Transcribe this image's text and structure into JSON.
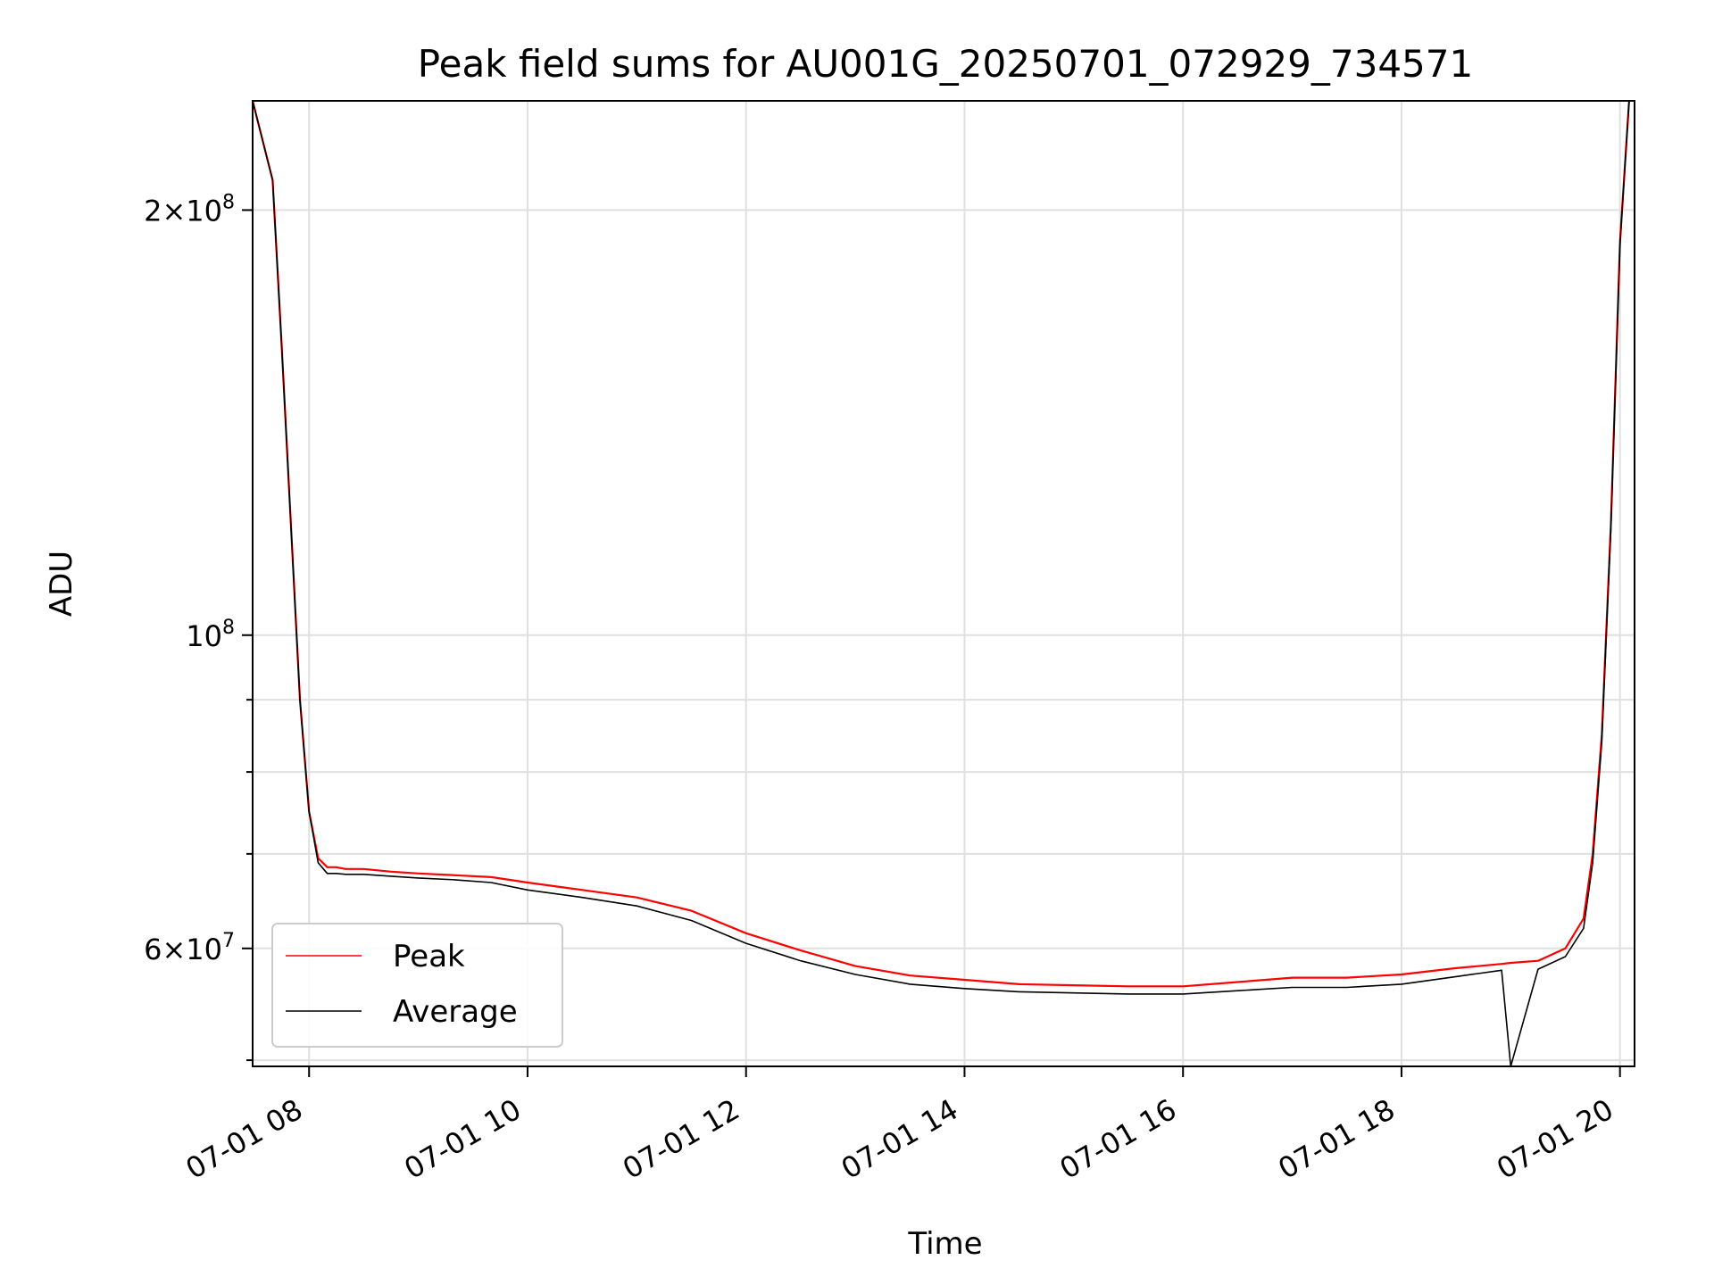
{
  "chart_data": {
    "type": "line",
    "title": "Peak field sums for AU001G_20250701_072929_734571",
    "xlabel": "Time",
    "ylabel": "ADU",
    "xlim": [
      "07-01 07:29",
      "07-01 20:08"
    ],
    "ylim": [
      49500000,
      239000000
    ],
    "yscale": "log",
    "grid": true,
    "legend_position": "lower-left",
    "x_ticks": [
      "07-01 08",
      "07-01 10",
      "07-01 12",
      "07-01 14",
      "07-01 16",
      "07-01 18",
      "07-01 20"
    ],
    "y_ticks": [
      {
        "value": 200000000,
        "mantissa": "2",
        "base": "10",
        "exponent": "8"
      },
      {
        "value": 100000000,
        "mantissa": "",
        "base": "10",
        "exponent": "8"
      },
      {
        "value": 60000000,
        "mantissa": "6",
        "base": "10",
        "exponent": "7"
      }
    ],
    "y_minor_ticks": [
      50000000,
      70000000,
      80000000,
      90000000
    ],
    "series": [
      {
        "name": "Peak",
        "color": "#ff0000",
        "x": [
          "07-01 07:29",
          "07-01 07:40",
          "07-01 07:45",
          "07-01 07:50",
          "07-01 07:55",
          "07-01 08:00",
          "07-01 08:05",
          "07-01 08:10",
          "07-01 08:15",
          "07-01 08:20",
          "07-01 08:30",
          "07-01 08:45",
          "07-01 09:00",
          "07-01 09:20",
          "07-01 09:40",
          "07-01 10:00",
          "07-01 10:30",
          "07-01 11:00",
          "07-01 11:30",
          "07-01 12:00",
          "07-01 12:30",
          "07-01 13:00",
          "07-01 13:30",
          "07-01 14:00",
          "07-01 14:30",
          "07-01 15:00",
          "07-01 15:30",
          "07-01 16:00",
          "07-01 16:30",
          "07-01 17:00",
          "07-01 17:30",
          "07-01 18:00",
          "07-01 18:30",
          "07-01 18:55",
          "07-01 19:00",
          "07-01 19:15",
          "07-01 19:30",
          "07-01 19:40",
          "07-01 19:45",
          "07-01 19:50",
          "07-01 19:55",
          "07-01 20:00",
          "07-01 20:05"
        ],
        "y": [
          239000000,
          210000000,
          160000000,
          120000000,
          90000000,
          75000000,
          69500000,
          68500000,
          68500000,
          68300000,
          68300000,
          68000000,
          67800000,
          67600000,
          67400000,
          66800000,
          66000000,
          65200000,
          63800000,
          61500000,
          59800000,
          58300000,
          57400000,
          57000000,
          56600000,
          56500000,
          56400000,
          56400000,
          56800000,
          57200000,
          57200000,
          57500000,
          58100000,
          58500000,
          58600000,
          58800000,
          60000000,
          63000000,
          70000000,
          85000000,
          120000000,
          190000000,
          239000000
        ]
      },
      {
        "name": "Average",
        "color": "#000000",
        "x": [
          "07-01 07:29",
          "07-01 07:40",
          "07-01 07:45",
          "07-01 07:50",
          "07-01 07:55",
          "07-01 08:00",
          "07-01 08:05",
          "07-01 08:10",
          "07-01 08:15",
          "07-01 08:20",
          "07-01 08:30",
          "07-01 08:45",
          "07-01 09:00",
          "07-01 09:20",
          "07-01 09:40",
          "07-01 10:00",
          "07-01 10:30",
          "07-01 11:00",
          "07-01 11:30",
          "07-01 12:00",
          "07-01 12:30",
          "07-01 13:00",
          "07-01 13:30",
          "07-01 14:00",
          "07-01 14:30",
          "07-01 15:00",
          "07-01 15:30",
          "07-01 16:00",
          "07-01 16:30",
          "07-01 17:00",
          "07-01 17:30",
          "07-01 18:00",
          "07-01 18:30",
          "07-01 18:55",
          "07-01 19:00",
          "07-01 19:15",
          "07-01 19:30",
          "07-01 19:40",
          "07-01 19:45",
          "07-01 19:50",
          "07-01 19:55",
          "07-01 20:00",
          "07-01 20:05"
        ],
        "y": [
          239000000,
          210000000,
          160000000,
          120000000,
          90000000,
          75000000,
          69000000,
          67800000,
          67800000,
          67700000,
          67700000,
          67500000,
          67300000,
          67100000,
          66800000,
          66000000,
          65200000,
          64300000,
          62800000,
          60500000,
          58800000,
          57500000,
          56600000,
          56200000,
          55900000,
          55800000,
          55700000,
          55700000,
          56000000,
          56300000,
          56300000,
          56600000,
          57300000,
          57900000,
          49500000,
          58000000,
          59200000,
          62000000,
          69000000,
          84000000,
          119000000,
          189000000,
          239000000
        ]
      }
    ]
  }
}
